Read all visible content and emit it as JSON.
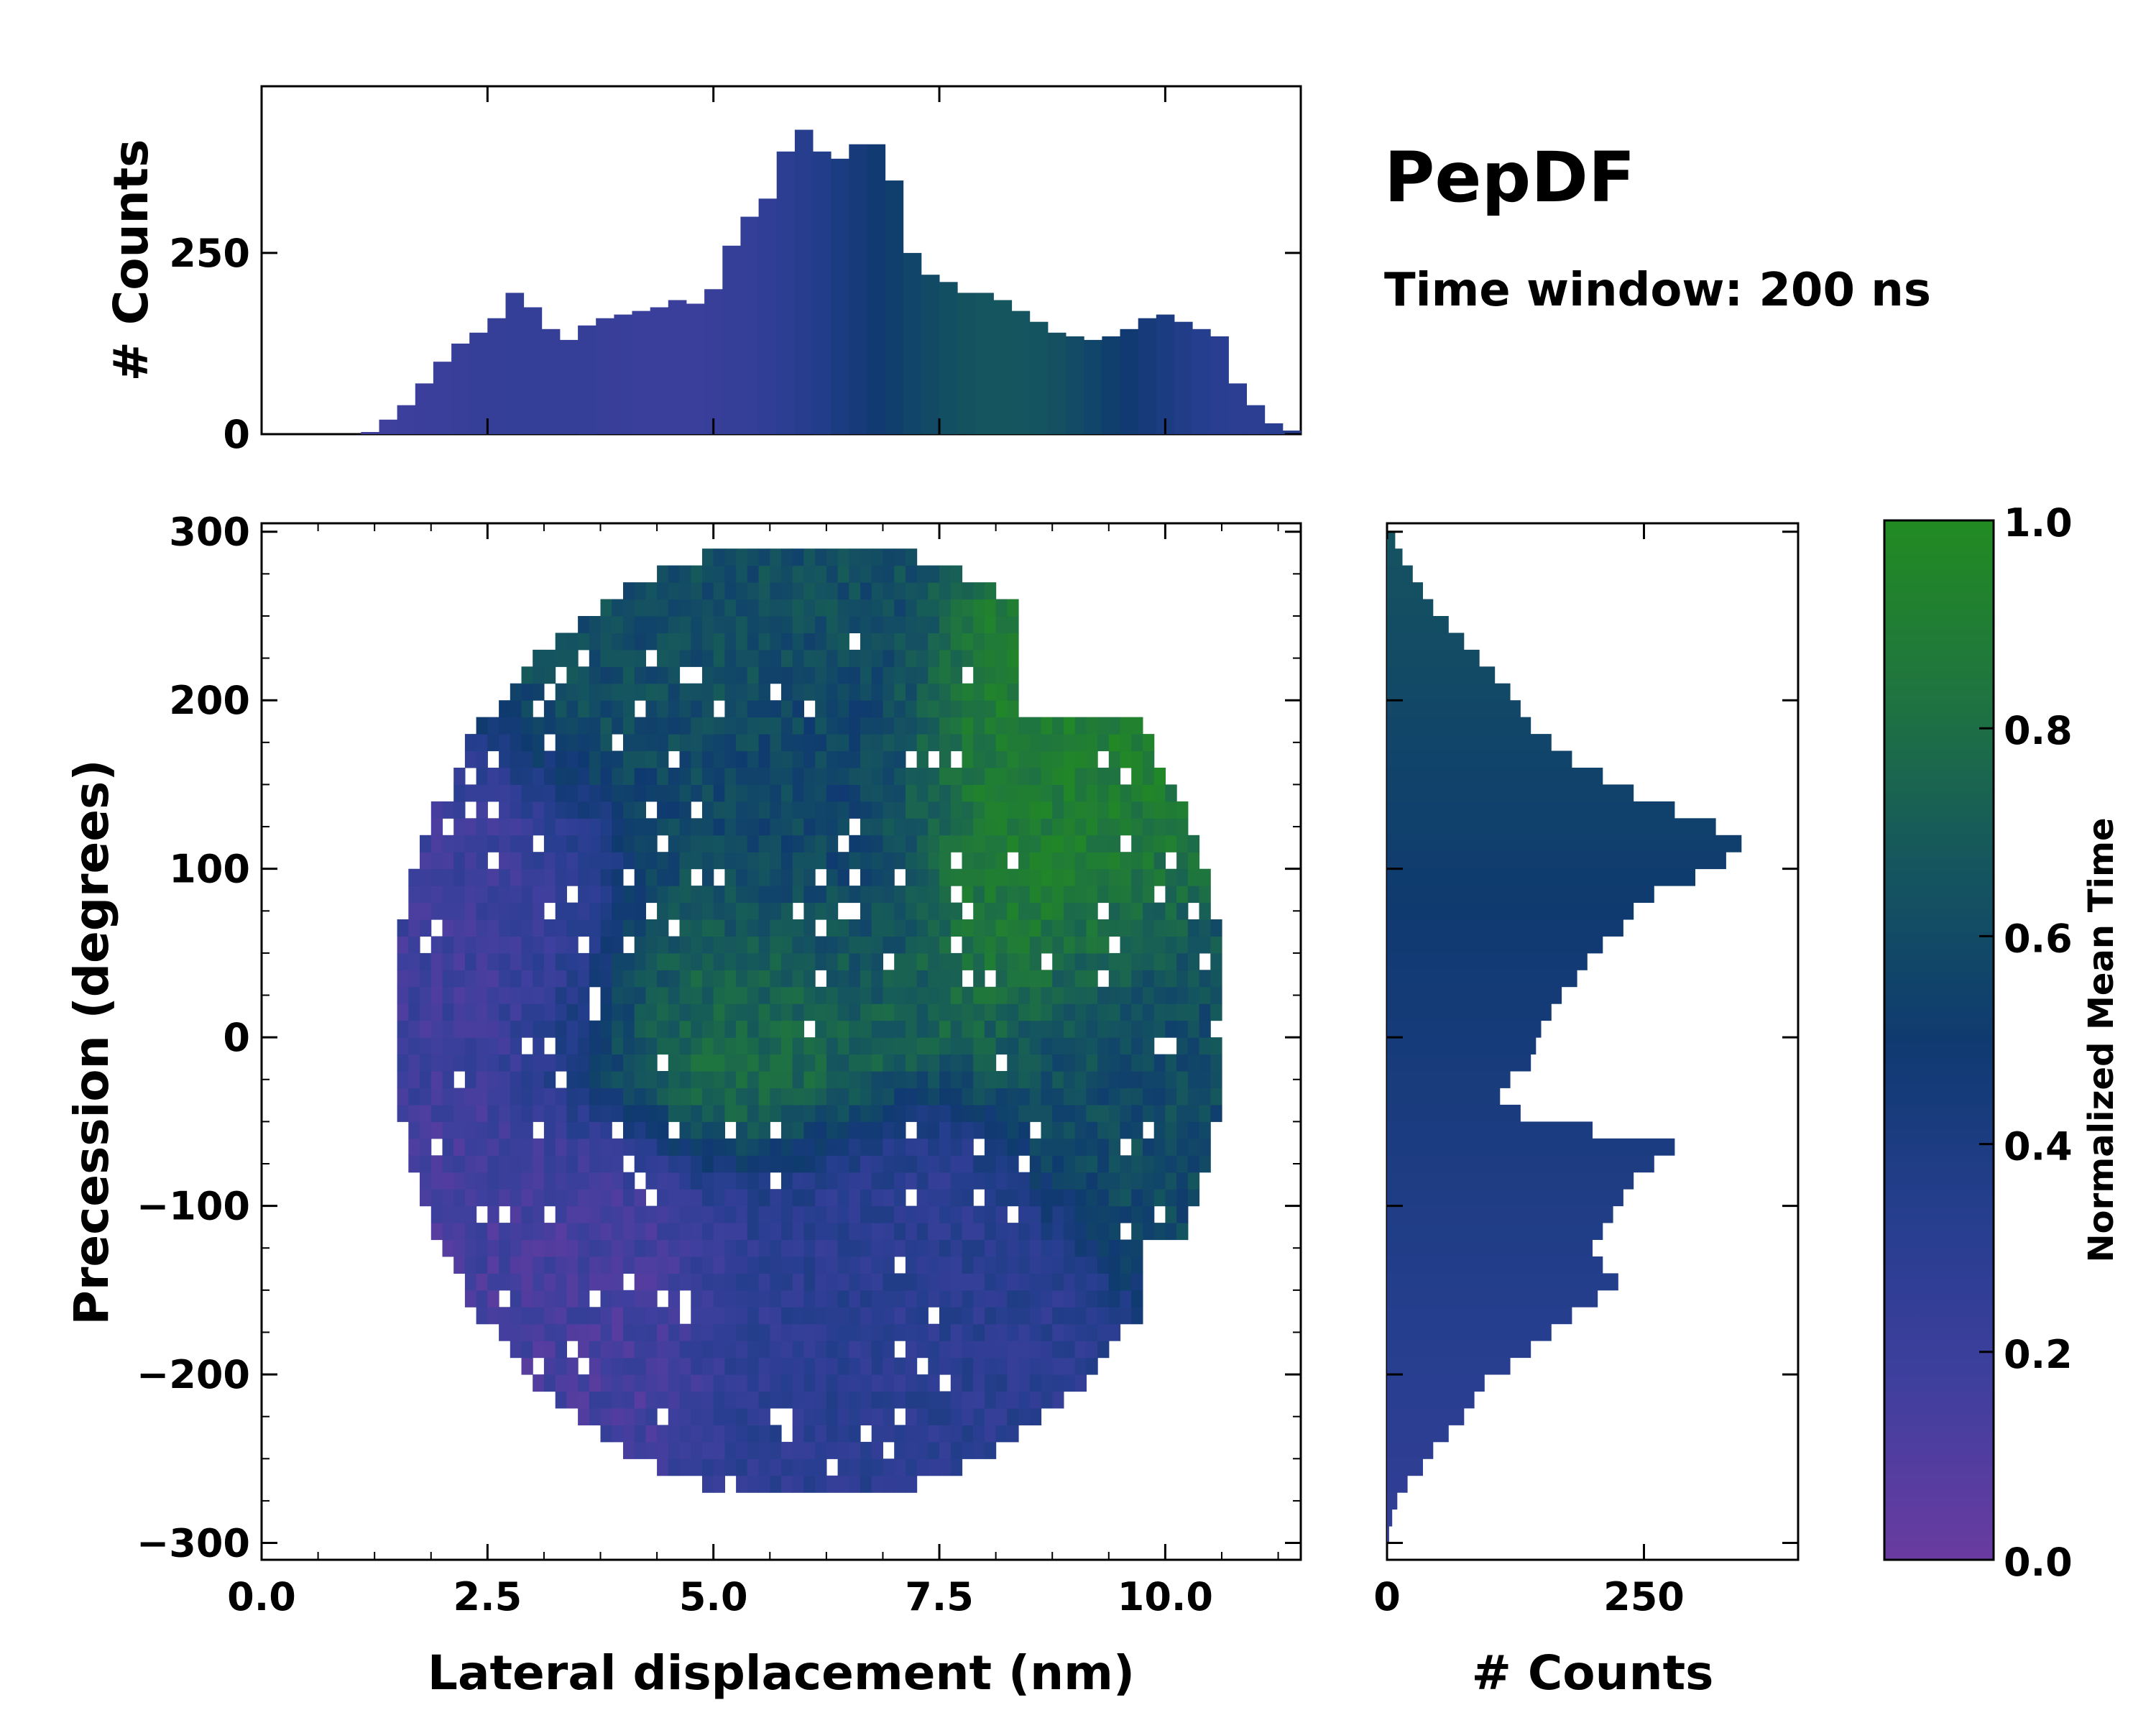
{
  "chart_data": {
    "type": "heatmap",
    "title": "PepDF",
    "subtitle": "Time window: 200 ns",
    "xlabel": "Lateral displacement (nm)",
    "ylabel": "Precession (degrees)",
    "xlim": [
      0,
      11.5
    ],
    "ylim": [
      -310,
      305
    ],
    "xticks": [
      0.0,
      2.5,
      5.0,
      7.5,
      10.0
    ],
    "xtick_labels": [
      "0.0",
      "2.5",
      "5.0",
      "7.5",
      "10.0"
    ],
    "yticks": [
      300,
      200,
      100,
      0,
      -100,
      -200,
      -300
    ],
    "ytick_labels": [
      "300",
      "200",
      "100",
      "0",
      "−100",
      "−200",
      "−300"
    ],
    "colorbar": {
      "label": "Normalized Mean Time",
      "range": [
        0.0,
        1.0
      ],
      "ticks": [
        0.0,
        0.2,
        0.4,
        0.6,
        0.8,
        1.0
      ],
      "tick_labels": [
        "0.0",
        "0.2",
        "0.4",
        "0.6",
        "0.8",
        "1.0"
      ],
      "colors": [
        "#6a3ba0",
        "#3f3f9e",
        "#263e8e",
        "#0f3a70",
        "#15565e",
        "#1f7440",
        "#228b22"
      ]
    },
    "regions": [
      {
        "name": "upper-left cluster",
        "x": 4.3,
        "y": 210,
        "value": 0.62
      },
      {
        "name": "left cluster",
        "x": 2.7,
        "y": 60,
        "value": 0.18
      },
      {
        "name": "center-top cluster",
        "x": 5.8,
        "y": 100,
        "value": 0.55
      },
      {
        "name": "center green band",
        "x": 5.0,
        "y": 20,
        "value": 0.8
      },
      {
        "name": "right green band",
        "x": 8.8,
        "y": 100,
        "value": 0.9
      },
      {
        "name": "right teal cluster",
        "x": 10.0,
        "y": 0,
        "value": 0.6
      },
      {
        "name": "lower-left cluster",
        "x": 3.4,
        "y": -140,
        "value": 0.15
      },
      {
        "name": "lower-center cluster",
        "x": 6.6,
        "y": -160,
        "value": 0.3
      }
    ],
    "top_histogram": {
      "ylabel": "# Counts",
      "yticks": [
        0,
        250
      ],
      "ytick_labels": [
        "0",
        "250"
      ],
      "ylim": [
        0,
        480
      ],
      "x": [
        1.2,
        1.4,
        1.6,
        1.8,
        2.0,
        2.2,
        2.4,
        2.6,
        2.8,
        3.0,
        3.2,
        3.4,
        3.6,
        3.8,
        4.0,
        4.2,
        4.4,
        4.6,
        4.8,
        5.0,
        5.2,
        5.4,
        5.6,
        5.8,
        6.0,
        6.2,
        6.4,
        6.6,
        6.8,
        7.0,
        7.2,
        7.4,
        7.6,
        7.8,
        8.0,
        8.2,
        8.4,
        8.6,
        8.8,
        9.0,
        9.2,
        9.4,
        9.6,
        9.8,
        10.0,
        10.2,
        10.4,
        10.6,
        10.8,
        11.0,
        11.2,
        11.4
      ],
      "values": [
        3,
        20,
        40,
        70,
        100,
        125,
        140,
        160,
        195,
        175,
        145,
        130,
        150,
        160,
        165,
        170,
        175,
        185,
        180,
        200,
        260,
        300,
        325,
        390,
        420,
        390,
        380,
        400,
        400,
        350,
        250,
        220,
        210,
        195,
        195,
        185,
        170,
        155,
        140,
        135,
        130,
        135,
        145,
        160,
        165,
        155,
        145,
        135,
        70,
        40,
        15,
        5
      ]
    },
    "right_histogram": {
      "xlabel": "# Counts",
      "xticks": [
        0,
        250
      ],
      "xtick_labels": [
        "0",
        "250"
      ],
      "xlim": [
        0,
        400
      ],
      "y": [
        295,
        285,
        275,
        265,
        255,
        245,
        235,
        225,
        215,
        205,
        195,
        185,
        175,
        165,
        155,
        145,
        135,
        125,
        115,
        105,
        95,
        85,
        75,
        65,
        55,
        45,
        35,
        25,
        15,
        5,
        -5,
        -15,
        -25,
        -35,
        -45,
        -55,
        -65,
        -75,
        -85,
        -95,
        -105,
        -115,
        -125,
        -135,
        -145,
        -155,
        -165,
        -175,
        -185,
        -195,
        -205,
        -215,
        -225,
        -235,
        -245,
        -255,
        -265,
        -275,
        -285,
        -295
      ],
      "values": [
        8,
        15,
        25,
        35,
        45,
        60,
        75,
        90,
        105,
        120,
        130,
        140,
        160,
        180,
        210,
        240,
        280,
        320,
        345,
        330,
        300,
        260,
        240,
        230,
        210,
        195,
        185,
        170,
        160,
        150,
        145,
        140,
        120,
        110,
        130,
        200,
        280,
        260,
        240,
        230,
        220,
        210,
        200,
        210,
        225,
        205,
        180,
        160,
        140,
        120,
        95,
        85,
        75,
        60,
        45,
        35,
        20,
        10,
        5,
        2
      ]
    }
  }
}
